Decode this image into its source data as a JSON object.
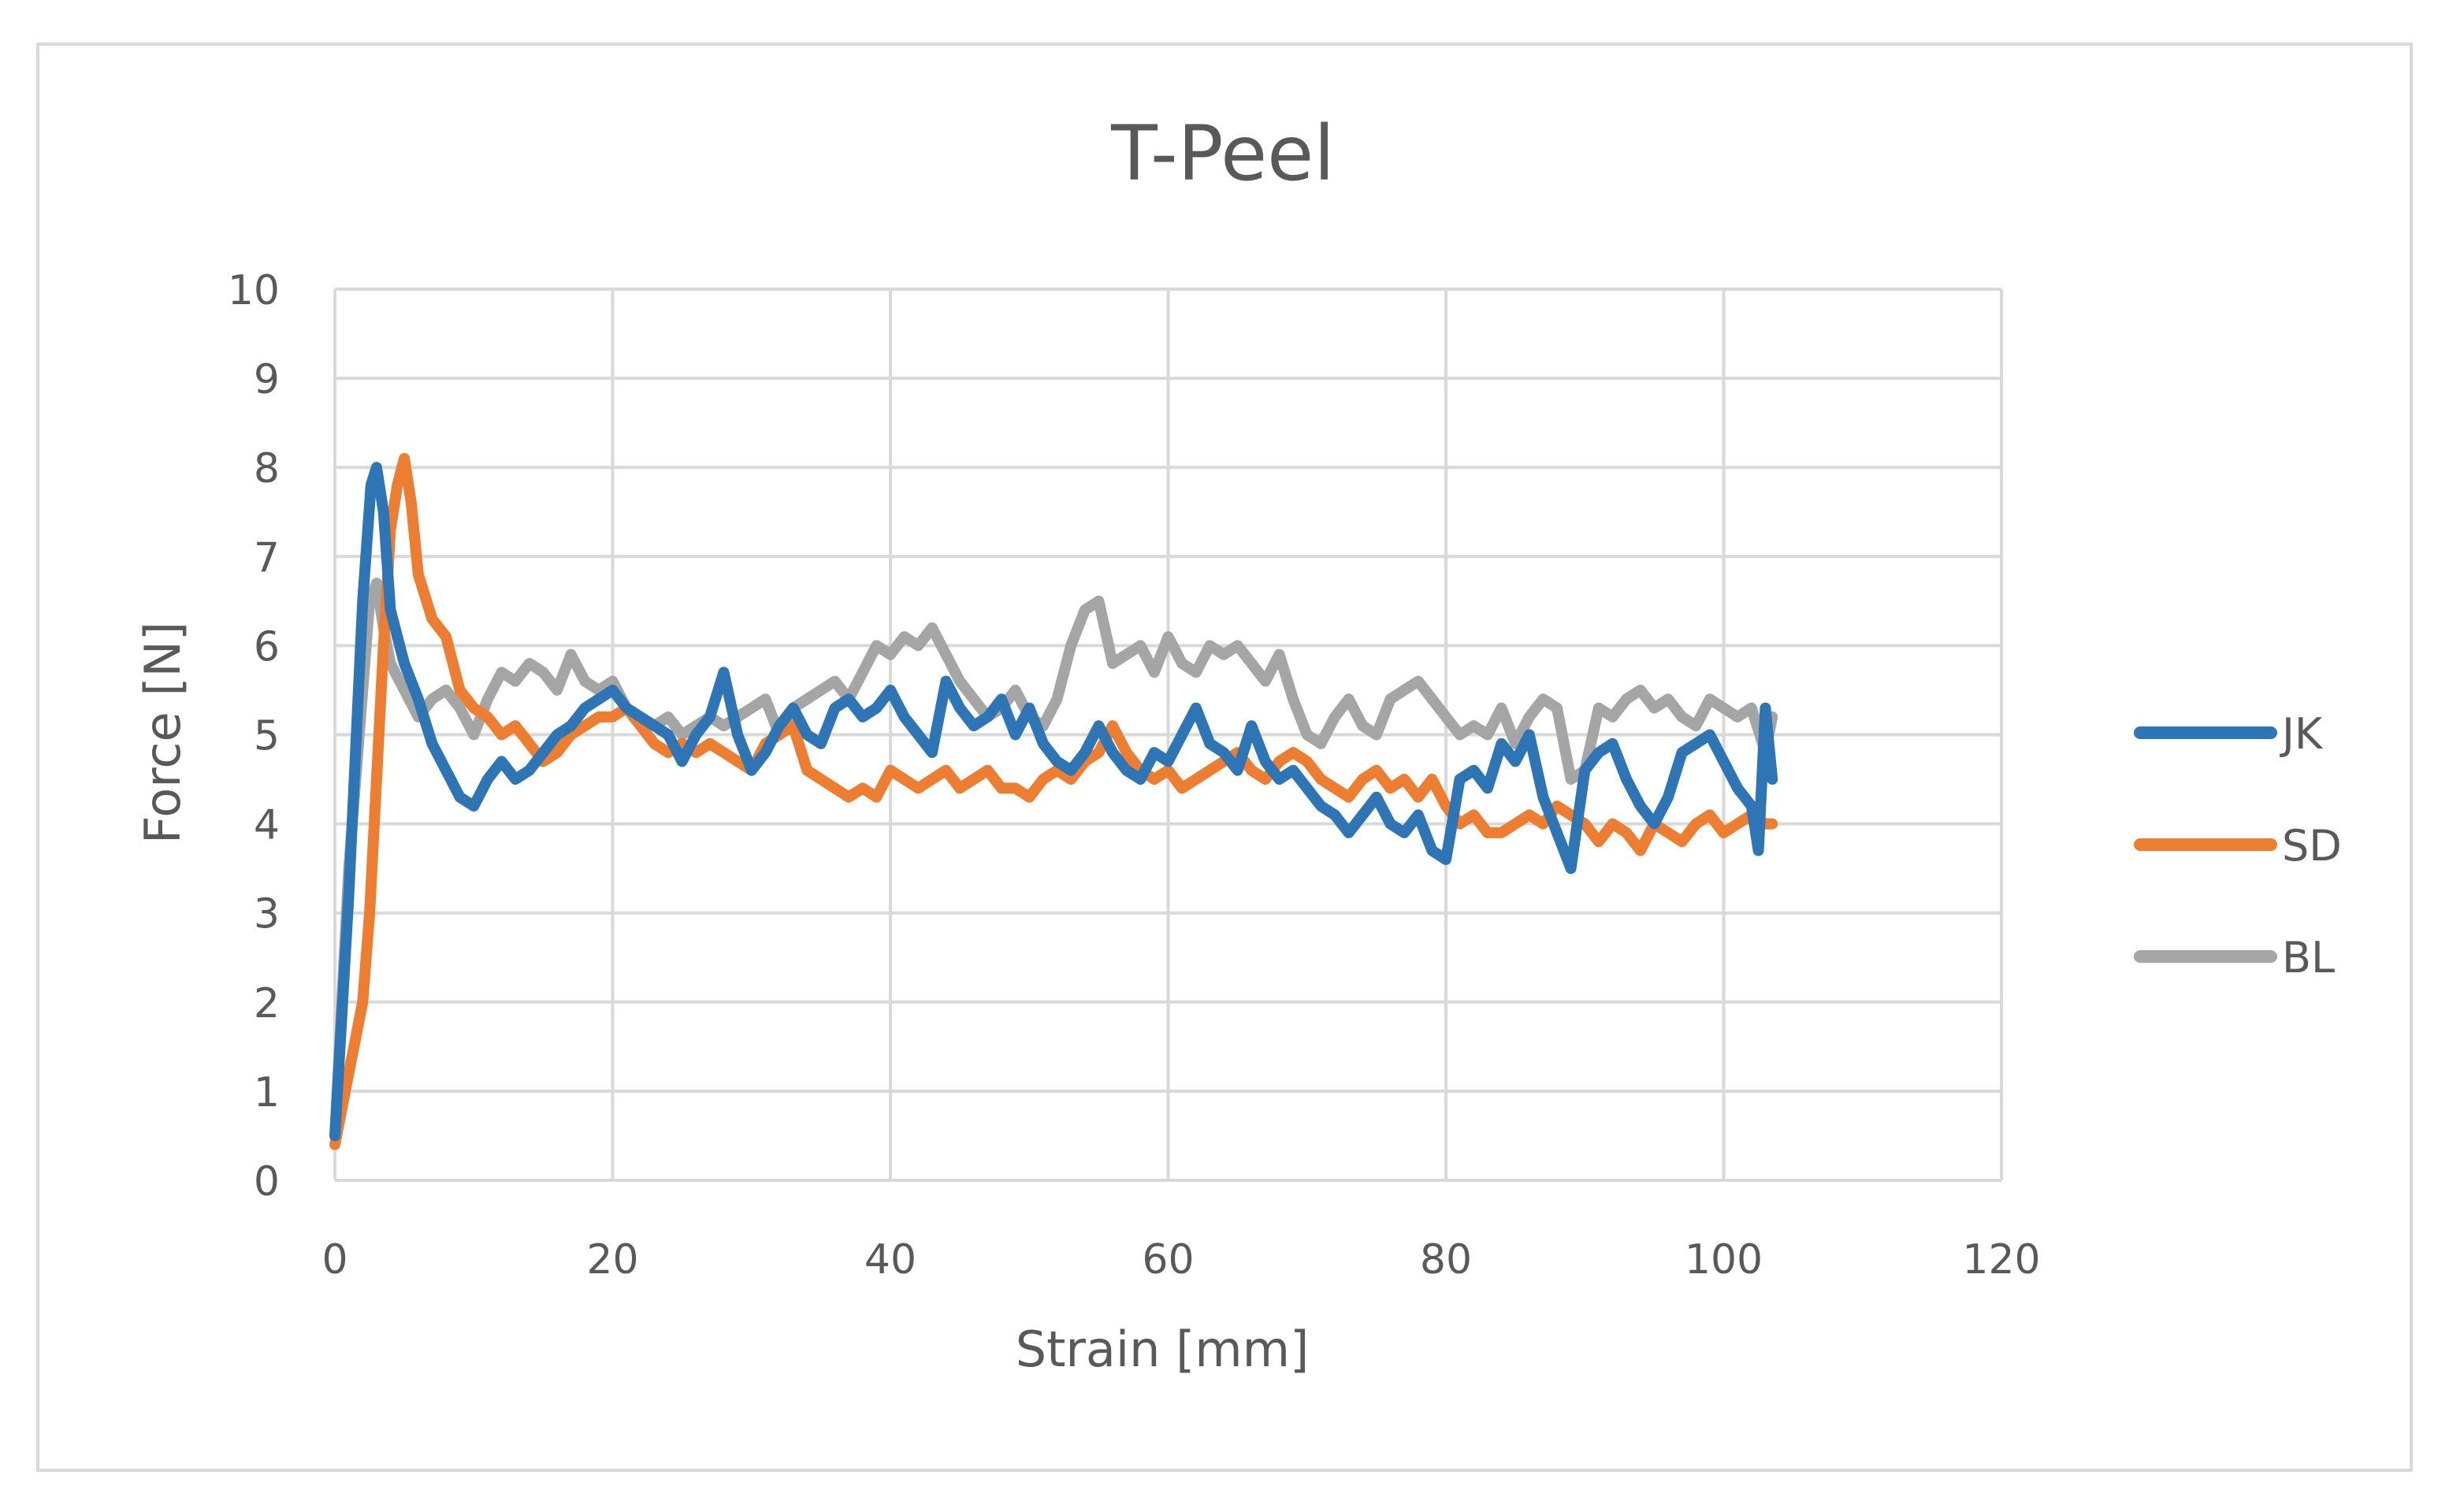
{
  "chart_data": {
    "type": "line",
    "title": "T-Peel",
    "xlabel": "Strain [mm]",
    "ylabel": "Force [N]",
    "xlim": [
      0,
      120
    ],
    "ylim": [
      0,
      10
    ],
    "xticks": [
      0,
      20,
      40,
      60,
      80,
      100,
      120
    ],
    "yticks": [
      0,
      1,
      2,
      3,
      4,
      5,
      6,
      7,
      8,
      9,
      10
    ],
    "grid": true,
    "legend_position": "right",
    "series": [
      {
        "name": "JK",
        "color": "#2e75b6",
        "x": [
          0,
          1,
          2,
          2.6,
          3,
          3.5,
          4,
          5,
          6,
          7,
          8,
          9,
          10,
          11,
          12,
          13,
          14,
          15,
          16,
          17,
          18,
          19,
          20,
          21,
          22,
          23,
          24,
          25,
          26,
          27,
          28,
          29,
          30,
          31,
          32,
          33,
          34,
          35,
          36,
          37,
          38,
          39,
          40,
          41,
          42,
          43,
          44,
          45,
          46,
          47,
          48,
          49,
          50,
          51,
          52,
          53,
          54,
          55,
          56,
          57,
          58,
          59,
          60,
          61,
          62,
          63,
          64,
          65,
          66,
          67,
          68,
          69,
          70,
          71,
          72,
          73,
          74,
          75,
          76,
          77,
          78,
          79,
          80,
          81,
          82,
          83,
          84,
          85,
          86,
          87,
          88,
          89,
          90,
          91,
          92,
          93,
          94,
          95,
          96,
          97,
          98,
          99,
          100,
          101,
          102,
          102.5,
          103,
          103.5
        ],
        "y": [
          0.5,
          3.2,
          6.5,
          7.8,
          8.0,
          7.5,
          6.4,
          5.8,
          5.4,
          4.9,
          4.6,
          4.3,
          4.2,
          4.5,
          4.7,
          4.5,
          4.6,
          4.8,
          5.0,
          5.1,
          5.3,
          5.4,
          5.5,
          5.3,
          5.2,
          5.1,
          5.0,
          4.7,
          5.0,
          5.2,
          5.7,
          5.0,
          4.6,
          4.8,
          5.1,
          5.3,
          5.0,
          4.9,
          5.3,
          5.4,
          5.2,
          5.3,
          5.5,
          5.2,
          5.0,
          4.8,
          5.6,
          5.3,
          5.1,
          5.2,
          5.4,
          5.0,
          5.3,
          4.9,
          4.7,
          4.6,
          4.8,
          5.1,
          4.8,
          4.6,
          4.5,
          4.8,
          4.7,
          5.0,
          5.3,
          4.9,
          4.8,
          4.6,
          5.1,
          4.7,
          4.5,
          4.6,
          4.4,
          4.2,
          4.1,
          3.9,
          4.1,
          4.3,
          4.0,
          3.9,
          4.1,
          3.7,
          3.6,
          4.5,
          4.6,
          4.4,
          4.9,
          4.7,
          5.0,
          4.3,
          3.9,
          3.5,
          4.6,
          4.8,
          4.9,
          4.5,
          4.2,
          4.0,
          4.3,
          4.8,
          4.9,
          5.0,
          4.7,
          4.4,
          4.2,
          3.7,
          5.3,
          4.5
        ]
      },
      {
        "name": "SD",
        "color": "#ed7d31",
        "x": [
          0,
          1,
          2,
          2.5,
          3,
          3.5,
          4,
          4.5,
          5,
          5.5,
          6,
          7,
          8,
          9,
          10,
          11,
          12,
          13,
          14,
          15,
          16,
          17,
          18,
          19,
          20,
          21,
          22,
          23,
          24,
          25,
          26,
          27,
          28,
          29,
          30,
          31,
          32,
          33,
          34,
          35,
          36,
          37,
          38,
          39,
          40,
          41,
          42,
          43,
          44,
          45,
          46,
          47,
          48,
          49,
          50,
          51,
          52,
          53,
          54,
          55,
          56,
          57,
          58,
          59,
          60,
          61,
          62,
          63,
          64,
          65,
          66,
          67,
          68,
          69,
          70,
          71,
          72,
          73,
          74,
          75,
          76,
          77,
          78,
          79,
          80,
          81,
          82,
          83,
          84,
          85,
          86,
          87,
          88,
          89,
          90,
          91,
          92,
          93,
          94,
          95,
          96,
          97,
          98,
          99,
          100,
          101,
          102,
          103,
          103.5
        ],
        "y": [
          0.4,
          1.2,
          2.0,
          3.0,
          4.5,
          6.0,
          7.3,
          7.8,
          8.1,
          7.6,
          6.8,
          6.3,
          6.1,
          5.5,
          5.3,
          5.2,
          5.0,
          5.1,
          4.9,
          4.7,
          4.8,
          5.0,
          5.1,
          5.2,
          5.2,
          5.3,
          5.1,
          4.9,
          4.8,
          4.9,
          4.8,
          4.9,
          4.8,
          4.7,
          4.6,
          4.9,
          5.0,
          5.1,
          4.6,
          4.5,
          4.4,
          4.3,
          4.4,
          4.3,
          4.6,
          4.5,
          4.4,
          4.5,
          4.6,
          4.4,
          4.5,
          4.6,
          4.4,
          4.4,
          4.3,
          4.5,
          4.6,
          4.5,
          4.7,
          4.8,
          5.1,
          4.8,
          4.6,
          4.5,
          4.6,
          4.4,
          4.5,
          4.6,
          4.7,
          4.8,
          4.6,
          4.5,
          4.7,
          4.8,
          4.7,
          4.5,
          4.4,
          4.3,
          4.5,
          4.6,
          4.4,
          4.5,
          4.3,
          4.5,
          4.2,
          4.0,
          4.1,
          3.9,
          3.9,
          4.0,
          4.1,
          4.0,
          4.2,
          4.1,
          4.0,
          3.8,
          4.0,
          3.9,
          3.7,
          4.0,
          3.9,
          3.8,
          4.0,
          4.1,
          3.9,
          4.0,
          4.1,
          4.0,
          4.0
        ]
      },
      {
        "name": "BL",
        "color": "#a5a5a5",
        "x": [
          0,
          1,
          2,
          2.5,
          3,
          3.5,
          4,
          5,
          6,
          7,
          8,
          9,
          10,
          11,
          12,
          13,
          14,
          15,
          16,
          17,
          18,
          19,
          20,
          21,
          22,
          23,
          24,
          25,
          26,
          27,
          28,
          29,
          30,
          31,
          32,
          33,
          34,
          35,
          36,
          37,
          38,
          39,
          40,
          41,
          42,
          43,
          44,
          45,
          46,
          47,
          48,
          49,
          50,
          51,
          52,
          53,
          54,
          55,
          56,
          57,
          58,
          59,
          60,
          61,
          62,
          63,
          64,
          65,
          66,
          67,
          68,
          69,
          70,
          71,
          72,
          73,
          74,
          75,
          76,
          77,
          78,
          79,
          80,
          81,
          82,
          83,
          84,
          85,
          86,
          87,
          88,
          89,
          90,
          91,
          92,
          93,
          94,
          95,
          96,
          97,
          98,
          99,
          100,
          101,
          102,
          103,
          103.5
        ],
        "y": [
          0.5,
          3.5,
          5.5,
          6.5,
          6.7,
          6.2,
          5.8,
          5.5,
          5.2,
          5.4,
          5.5,
          5.3,
          5.0,
          5.4,
          5.7,
          5.6,
          5.8,
          5.7,
          5.5,
          5.9,
          5.6,
          5.5,
          5.6,
          5.3,
          5.2,
          5.1,
          5.2,
          5.0,
          5.1,
          5.2,
          5.1,
          5.2,
          5.3,
          5.4,
          5.0,
          5.3,
          5.4,
          5.5,
          5.6,
          5.4,
          5.7,
          6.0,
          5.9,
          6.1,
          6.0,
          6.2,
          5.9,
          5.6,
          5.4,
          5.2,
          5.3,
          5.5,
          5.2,
          5.1,
          5.4,
          6.0,
          6.4,
          6.5,
          5.8,
          5.9,
          6.0,
          5.7,
          6.1,
          5.8,
          5.7,
          6.0,
          5.9,
          6.0,
          5.8,
          5.6,
          5.9,
          5.4,
          5.0,
          4.9,
          5.2,
          5.4,
          5.1,
          5.0,
          5.4,
          5.5,
          5.6,
          5.4,
          5.2,
          5.0,
          5.1,
          5.0,
          5.3,
          4.9,
          5.2,
          5.4,
          5.3,
          4.5,
          4.6,
          5.3,
          5.2,
          5.4,
          5.5,
          5.3,
          5.4,
          5.2,
          5.1,
          5.4,
          5.3,
          5.2,
          5.3,
          4.8,
          5.2
        ]
      }
    ]
  }
}
